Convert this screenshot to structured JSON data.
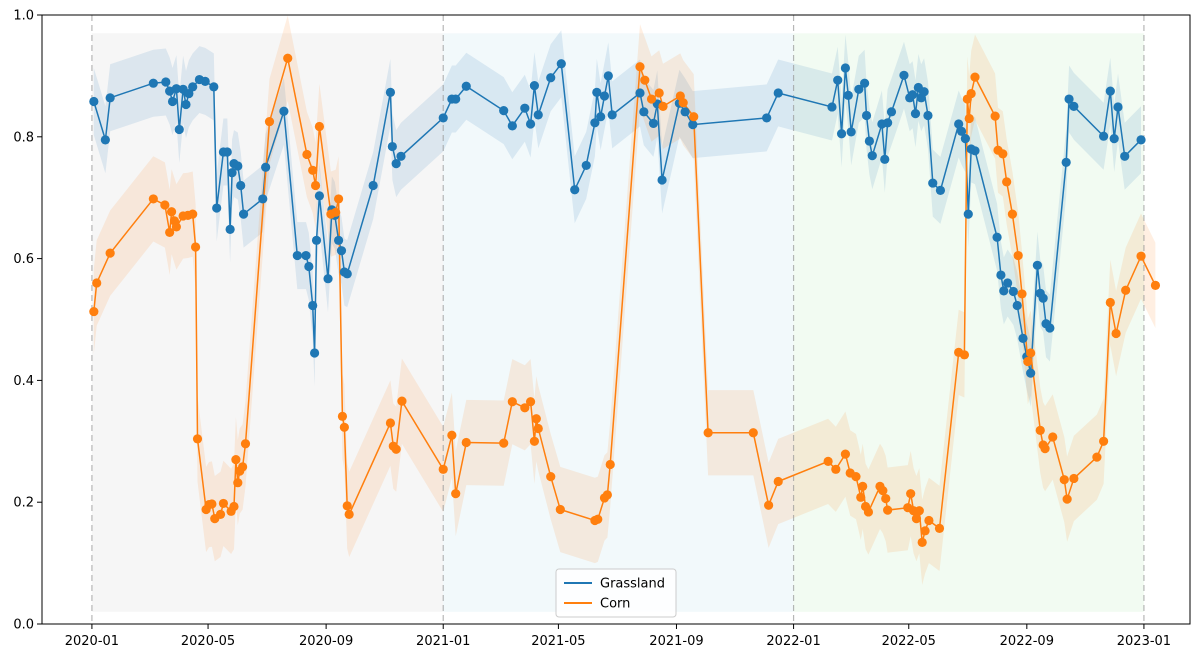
{
  "chart_data": {
    "type": "line",
    "title": "",
    "xlabel": "",
    "ylabel": "",
    "ylim": [
      0,
      1.0
    ],
    "xlim": [
      "2019-11-10",
      "2023-02-18"
    ],
    "grid": false,
    "legend_position": "bottom-center",
    "x_ticks": [
      "2020-01",
      "2020-05",
      "2020-09",
      "2021-01",
      "2021-05",
      "2021-09",
      "2022-01",
      "2022-05",
      "2022-09",
      "2023-01"
    ],
    "y_ticks": [
      "0.0",
      "0.2",
      "0.4",
      "0.6",
      "0.8",
      "1.0"
    ],
    "colors": {
      "Grassland": "#1f77b4",
      "Corn": "#ff7f0e"
    },
    "season_bands": [
      {
        "start": "2020-01-01",
        "end": "2021-01-01",
        "color": "#eeeeee"
      },
      {
        "start": "2021-01-01",
        "end": "2022-01-01",
        "color": "#e6f4f8"
      },
      {
        "start": "2022-01-01",
        "end": "2023-01-01",
        "color": "#e6f8e6"
      }
    ],
    "year_lines": [
      "2020-01-01",
      "2021-01-01",
      "2022-01-01",
      "2023-01-01"
    ],
    "series": [
      {
        "name": "Grassland",
        "band": 0.055,
        "points": [
          [
            "2020-01-03",
            0.858
          ],
          [
            "2020-01-15",
            0.795
          ],
          [
            "2020-01-20",
            0.864
          ],
          [
            "2020-03-05",
            0.888
          ],
          [
            "2020-03-18",
            0.89
          ],
          [
            "2020-03-22",
            0.875
          ],
          [
            "2020-03-25",
            0.858
          ],
          [
            "2020-03-29",
            0.879
          ],
          [
            "2020-04-01",
            0.812
          ],
          [
            "2020-04-05",
            0.878
          ],
          [
            "2020-04-08",
            0.853
          ],
          [
            "2020-04-11",
            0.871
          ],
          [
            "2020-04-15",
            0.882
          ],
          [
            "2020-04-22",
            0.894
          ],
          [
            "2020-04-28",
            0.891
          ],
          [
            "2020-05-07",
            0.882
          ],
          [
            "2020-05-10",
            0.683
          ],
          [
            "2020-05-17",
            0.775
          ],
          [
            "2020-05-21",
            0.775
          ],
          [
            "2020-05-24",
            0.648
          ],
          [
            "2020-05-26",
            0.741
          ],
          [
            "2020-05-28",
            0.756
          ],
          [
            "2020-06-01",
            0.752
          ],
          [
            "2020-06-04",
            0.72
          ],
          [
            "2020-06-07",
            0.673
          ],
          [
            "2020-06-27",
            0.698
          ],
          [
            "2020-06-30",
            0.75
          ],
          [
            "2020-07-19",
            0.842
          ],
          [
            "2020-08-02",
            0.605
          ],
          [
            "2020-08-11",
            0.605
          ],
          [
            "2020-08-14",
            0.587
          ],
          [
            "2020-08-18",
            0.523
          ],
          [
            "2020-08-20",
            0.445
          ],
          [
            "2020-08-22",
            0.63
          ],
          [
            "2020-08-25",
            0.703
          ],
          [
            "2020-09-03",
            0.567
          ],
          [
            "2020-09-07",
            0.68
          ],
          [
            "2020-09-10",
            0.671
          ],
          [
            "2020-09-14",
            0.63
          ],
          [
            "2020-09-17",
            0.613
          ],
          [
            "2020-09-20",
            0.578
          ],
          [
            "2020-09-23",
            0.575
          ],
          [
            "2020-10-20",
            0.72
          ],
          [
            "2020-11-07",
            0.873
          ],
          [
            "2020-11-09",
            0.784
          ],
          [
            "2020-11-13",
            0.756
          ],
          [
            "2020-11-18",
            0.768
          ],
          [
            "2021-01-01",
            0.831
          ],
          [
            "2021-01-10",
            0.862
          ],
          [
            "2021-01-14",
            0.862
          ],
          [
            "2021-01-25",
            0.883
          ],
          [
            "2021-03-05",
            0.843
          ],
          [
            "2021-03-14",
            0.818
          ],
          [
            "2021-03-27",
            0.847
          ],
          [
            "2021-04-02",
            0.821
          ],
          [
            "2021-04-06",
            0.884
          ],
          [
            "2021-04-10",
            0.836
          ],
          [
            "2021-04-23",
            0.897
          ],
          [
            "2021-05-04",
            0.92
          ],
          [
            "2021-05-18",
            0.713
          ],
          [
            "2021-05-30",
            0.753
          ],
          [
            "2021-06-08",
            0.823
          ],
          [
            "2021-06-10",
            0.873
          ],
          [
            "2021-06-14",
            0.833
          ],
          [
            "2021-06-18",
            0.867
          ],
          [
            "2021-06-22",
            0.9
          ],
          [
            "2021-06-26",
            0.836
          ],
          [
            "2021-07-25",
            0.872
          ],
          [
            "2021-07-29",
            0.841
          ],
          [
            "2021-08-08",
            0.822
          ],
          [
            "2021-08-12",
            0.854
          ],
          [
            "2021-08-17",
            0.729
          ],
          [
            "2021-09-04",
            0.855
          ],
          [
            "2021-09-10",
            0.841
          ],
          [
            "2021-09-18",
            0.82
          ],
          [
            "2021-12-04",
            0.831
          ],
          [
            "2021-12-16",
            0.872
          ],
          [
            "2022-02-10",
            0.849
          ],
          [
            "2022-02-16",
            0.893
          ],
          [
            "2022-02-20",
            0.805
          ],
          [
            "2022-02-24",
            0.913
          ],
          [
            "2022-02-27",
            0.868
          ],
          [
            "2022-03-02",
            0.808
          ],
          [
            "2022-03-10",
            0.878
          ],
          [
            "2022-03-16",
            0.888
          ],
          [
            "2022-03-18",
            0.835
          ],
          [
            "2022-03-21",
            0.793
          ],
          [
            "2022-03-24",
            0.769
          ],
          [
            "2022-04-03",
            0.821
          ],
          [
            "2022-04-06",
            0.763
          ],
          [
            "2022-04-09",
            0.823
          ],
          [
            "2022-04-13",
            0.841
          ],
          [
            "2022-04-26",
            0.901
          ],
          [
            "2022-05-02",
            0.864
          ],
          [
            "2022-05-05",
            0.869
          ],
          [
            "2022-05-08",
            0.838
          ],
          [
            "2022-05-11",
            0.881
          ],
          [
            "2022-05-14",
            0.864
          ],
          [
            "2022-05-17",
            0.874
          ],
          [
            "2022-05-21",
            0.835
          ],
          [
            "2022-05-26",
            0.724
          ],
          [
            "2022-06-03",
            0.712
          ],
          [
            "2022-06-22",
            0.821
          ],
          [
            "2022-06-25",
            0.809
          ],
          [
            "2022-06-29",
            0.797
          ],
          [
            "2022-07-02",
            0.673
          ],
          [
            "2022-07-05",
            0.78
          ],
          [
            "2022-07-09",
            0.777
          ],
          [
            "2022-08-01",
            0.635
          ],
          [
            "2022-08-05",
            0.573
          ],
          [
            "2022-08-08",
            0.547
          ],
          [
            "2022-08-12",
            0.56
          ],
          [
            "2022-08-18",
            0.546
          ],
          [
            "2022-08-22",
            0.523
          ],
          [
            "2022-08-28",
            0.469
          ],
          [
            "2022-09-01",
            0.439
          ],
          [
            "2022-09-05",
            0.412
          ],
          [
            "2022-09-12",
            0.589
          ],
          [
            "2022-09-15",
            0.543
          ],
          [
            "2022-09-18",
            0.535
          ],
          [
            "2022-09-21",
            0.493
          ],
          [
            "2022-09-25",
            0.486
          ],
          [
            "2022-10-12",
            0.758
          ],
          [
            "2022-10-15",
            0.862
          ],
          [
            "2022-10-20",
            0.85
          ],
          [
            "2022-11-20",
            0.801
          ],
          [
            "2022-11-27",
            0.875
          ],
          [
            "2022-12-01",
            0.797
          ],
          [
            "2022-12-05",
            0.849
          ],
          [
            "2022-12-12",
            0.768
          ],
          [
            "2022-12-29",
            0.795
          ]
        ]
      },
      {
        "name": "Corn",
        "band": 0.07,
        "points": [
          [
            "2020-01-03",
            0.513
          ],
          [
            "2020-01-06",
            0.56
          ],
          [
            "2020-01-20",
            0.609
          ],
          [
            "2020-03-05",
            0.698
          ],
          [
            "2020-03-17",
            0.688
          ],
          [
            "2020-03-22",
            0.643
          ],
          [
            "2020-03-24",
            0.677
          ],
          [
            "2020-03-27",
            0.662
          ],
          [
            "2020-03-29",
            0.652
          ],
          [
            "2020-04-05",
            0.67
          ],
          [
            "2020-04-10",
            0.671
          ],
          [
            "2020-04-15",
            0.673
          ],
          [
            "2020-04-18",
            0.619
          ],
          [
            "2020-04-20",
            0.304
          ],
          [
            "2020-04-29",
            0.188
          ],
          [
            "2020-05-02",
            0.196
          ],
          [
            "2020-05-05",
            0.197
          ],
          [
            "2020-05-08",
            0.173
          ],
          [
            "2020-05-14",
            0.18
          ],
          [
            "2020-05-17",
            0.198
          ],
          [
            "2020-05-25",
            0.185
          ],
          [
            "2020-05-28",
            0.193
          ],
          [
            "2020-05-30",
            0.27
          ],
          [
            "2020-06-01",
            0.232
          ],
          [
            "2020-06-03",
            0.251
          ],
          [
            "2020-06-06",
            0.258
          ],
          [
            "2020-06-09",
            0.296
          ],
          [
            "2020-07-04",
            0.825
          ],
          [
            "2020-07-23",
            0.929
          ],
          [
            "2020-08-12",
            0.771
          ],
          [
            "2020-08-18",
            0.745
          ],
          [
            "2020-08-21",
            0.72
          ],
          [
            "2020-08-25",
            0.817
          ],
          [
            "2020-09-06",
            0.673
          ],
          [
            "2020-09-11",
            0.676
          ],
          [
            "2020-09-14",
            0.698
          ],
          [
            "2020-09-18",
            0.341
          ],
          [
            "2020-09-20",
            0.323
          ],
          [
            "2020-09-23",
            0.194
          ],
          [
            "2020-09-25",
            0.18
          ],
          [
            "2020-11-07",
            0.33
          ],
          [
            "2020-11-10",
            0.292
          ],
          [
            "2020-11-13",
            0.287
          ],
          [
            "2020-11-19",
            0.366
          ],
          [
            "2021-01-01",
            0.254
          ],
          [
            "2021-01-10",
            0.31
          ],
          [
            "2021-01-14",
            0.214
          ],
          [
            "2021-01-25",
            0.298
          ],
          [
            "2021-03-05",
            0.297
          ],
          [
            "2021-03-14",
            0.365
          ],
          [
            "2021-03-27",
            0.355
          ],
          [
            "2021-04-02",
            0.365
          ],
          [
            "2021-04-06",
            0.3
          ],
          [
            "2021-04-08",
            0.337
          ],
          [
            "2021-04-10",
            0.321
          ],
          [
            "2021-04-23",
            0.242
          ],
          [
            "2021-05-03",
            0.188
          ],
          [
            "2021-06-08",
            0.17
          ],
          [
            "2021-06-11",
            0.172
          ],
          [
            "2021-06-18",
            0.207
          ],
          [
            "2021-06-21",
            0.212
          ],
          [
            "2021-06-24",
            0.262
          ],
          [
            "2021-07-25",
            0.915
          ],
          [
            "2021-07-30",
            0.893
          ],
          [
            "2021-08-06",
            0.862
          ],
          [
            "2021-08-14",
            0.872
          ],
          [
            "2021-08-18",
            0.85
          ],
          [
            "2021-09-05",
            0.867
          ],
          [
            "2021-09-08",
            0.856
          ],
          [
            "2021-09-19",
            0.833
          ],
          [
            "2021-10-04",
            0.314
          ],
          [
            "2021-11-20",
            0.314
          ],
          [
            "2021-12-06",
            0.195
          ],
          [
            "2021-12-16",
            0.234
          ],
          [
            "2022-02-06",
            0.267
          ],
          [
            "2022-02-14",
            0.254
          ],
          [
            "2022-02-24",
            0.279
          ],
          [
            "2022-03-01",
            0.248
          ],
          [
            "2022-03-07",
            0.242
          ],
          [
            "2022-03-12",
            0.208
          ],
          [
            "2022-03-14",
            0.226
          ],
          [
            "2022-03-17",
            0.193
          ],
          [
            "2022-03-20",
            0.184
          ],
          [
            "2022-04-01",
            0.226
          ],
          [
            "2022-04-04",
            0.219
          ],
          [
            "2022-04-07",
            0.206
          ],
          [
            "2022-04-09",
            0.187
          ],
          [
            "2022-04-30",
            0.191
          ],
          [
            "2022-05-03",
            0.214
          ],
          [
            "2022-05-06",
            0.186
          ],
          [
            "2022-05-09",
            0.173
          ],
          [
            "2022-05-12",
            0.186
          ],
          [
            "2022-05-15",
            0.134
          ],
          [
            "2022-05-18",
            0.153
          ],
          [
            "2022-05-22",
            0.17
          ],
          [
            "2022-06-02",
            0.157
          ],
          [
            "2022-06-22",
            0.446
          ],
          [
            "2022-06-28",
            0.442
          ],
          [
            "2022-07-01",
            0.862
          ],
          [
            "2022-07-03",
            0.83
          ],
          [
            "2022-07-05",
            0.871
          ],
          [
            "2022-07-09",
            0.898
          ],
          [
            "2022-07-30",
            0.834
          ],
          [
            "2022-08-02",
            0.778
          ],
          [
            "2022-08-07",
            0.772
          ],
          [
            "2022-08-11",
            0.726
          ],
          [
            "2022-08-17",
            0.673
          ],
          [
            "2022-08-23",
            0.605
          ],
          [
            "2022-08-27",
            0.542
          ],
          [
            "2022-09-02",
            0.431
          ],
          [
            "2022-09-05",
            0.445
          ],
          [
            "2022-09-15",
            0.318
          ],
          [
            "2022-09-18",
            0.294
          ],
          [
            "2022-09-20",
            0.288
          ],
          [
            "2022-09-28",
            0.307
          ],
          [
            "2022-10-10",
            0.237
          ],
          [
            "2022-10-13",
            0.205
          ],
          [
            "2022-10-20",
            0.239
          ],
          [
            "2022-11-13",
            0.274
          ],
          [
            "2022-11-20",
            0.3
          ],
          [
            "2022-11-27",
            0.528
          ],
          [
            "2022-12-03",
            0.477
          ],
          [
            "2022-12-13",
            0.548
          ],
          [
            "2022-12-29",
            0.604
          ],
          [
            "2023-01-13",
            0.556
          ]
        ]
      }
    ]
  }
}
